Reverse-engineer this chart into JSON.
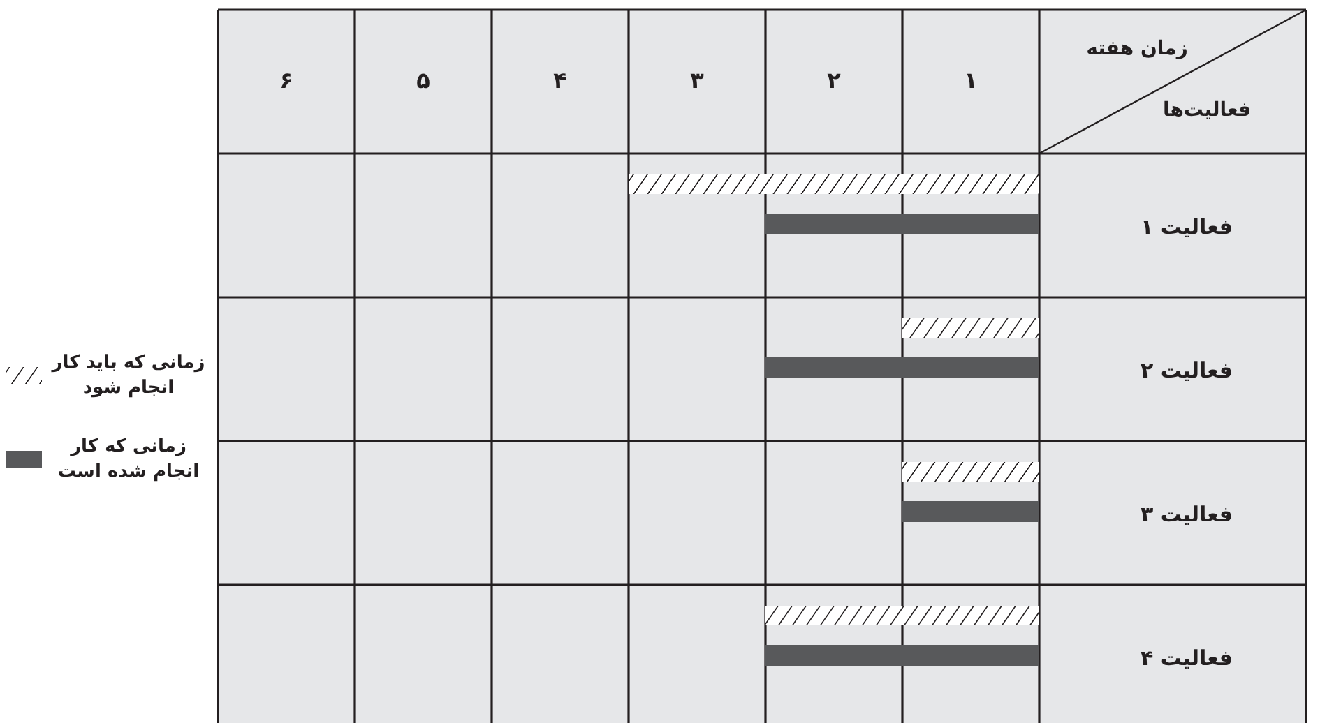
{
  "chart_data": {
    "type": "bar",
    "orientation": "horizontal",
    "xlabel": "زمان هفته",
    "ylabel": "فعالیت‌ها",
    "categories": [
      "فعالیت ۱",
      "فعالیت ۲",
      "فعالیت ۳",
      "فعالیت ۴"
    ],
    "xlim": [
      6,
      0
    ],
    "xticks": [
      {
        "value": 5.5,
        "label": "۶"
      },
      {
        "value": 4.5,
        "label": "۵"
      },
      {
        "value": 3.5,
        "label": "۴"
      },
      {
        "value": 2.5,
        "label": "۳"
      },
      {
        "value": 1.5,
        "label": "۲"
      },
      {
        "value": 0.5,
        "label": "۱"
      }
    ],
    "grid": true,
    "legend": "left",
    "series": [
      {
        "name": "زمانی که باید کار انجام شود",
        "color": "#ffffff",
        "values": [
          3,
          1,
          1,
          2
        ]
      },
      {
        "name": "زمانی که کار انجام شده است",
        "color": "#58595b",
        "values": [
          2,
          2,
          1,
          2
        ]
      }
    ]
  }
}
